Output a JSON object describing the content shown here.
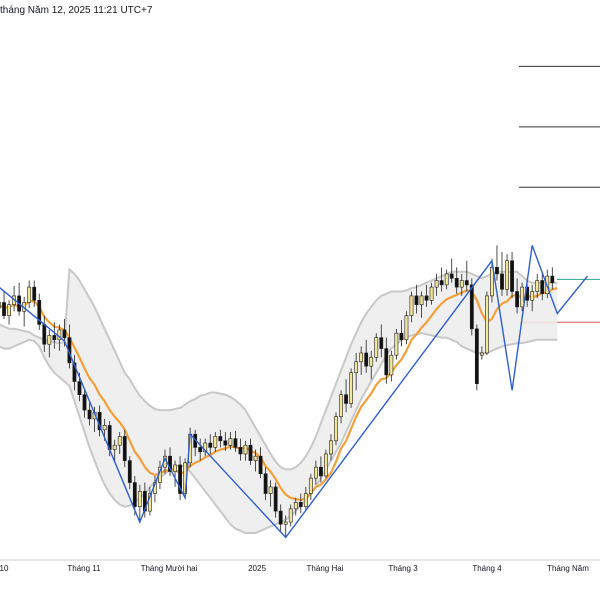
{
  "header": {
    "datetime_text": "tháng Năm 12, 2025 11:21 UTC+7"
  },
  "colors": {
    "candle_up": "#f3e69a",
    "candle_down": "#111111",
    "candle_outline": "#222222",
    "ema": "#f2a03a",
    "zigzag": "#2f5fd1",
    "band_fill": "#ececec",
    "band_edge": "#c8c8c8",
    "resistance_line": "#2aa889",
    "support_line": "#e05a5a",
    "target_lines": "#333333"
  },
  "chart_data": {
    "type": "candlestick",
    "title": "",
    "x_tick_labels": [
      "10",
      "Tháng 11",
      "Tháng Mười hai",
      "2025",
      "Tháng Hai",
      "Tháng 3",
      "Tháng 4",
      "Tháng Năm"
    ],
    "candles": [
      {
        "o": 1225,
        "h": 1241,
        "l": 1205,
        "c": 1230
      },
      {
        "o": 1230,
        "h": 1240,
        "l": 1215,
        "c": 1218
      },
      {
        "o": 1218,
        "h": 1232,
        "l": 1210,
        "c": 1228
      },
      {
        "o": 1228,
        "h": 1245,
        "l": 1222,
        "c": 1236
      },
      {
        "o": 1236,
        "h": 1248,
        "l": 1218,
        "c": 1222
      },
      {
        "o": 1222,
        "h": 1235,
        "l": 1208,
        "c": 1230
      },
      {
        "o": 1230,
        "h": 1250,
        "l": 1225,
        "c": 1244
      },
      {
        "o": 1244,
        "h": 1250,
        "l": 1226,
        "c": 1232
      },
      {
        "o": 1232,
        "h": 1238,
        "l": 1205,
        "c": 1210
      },
      {
        "o": 1210,
        "h": 1218,
        "l": 1185,
        "c": 1192
      },
      {
        "o": 1192,
        "h": 1205,
        "l": 1180,
        "c": 1200
      },
      {
        "o": 1200,
        "h": 1212,
        "l": 1188,
        "c": 1196
      },
      {
        "o": 1196,
        "h": 1210,
        "l": 1186,
        "c": 1205
      },
      {
        "o": 1205,
        "h": 1215,
        "l": 1190,
        "c": 1198
      },
      {
        "o": 1198,
        "h": 1210,
        "l": 1170,
        "c": 1175
      },
      {
        "o": 1175,
        "h": 1182,
        "l": 1150,
        "c": 1158
      },
      {
        "o": 1158,
        "h": 1166,
        "l": 1140,
        "c": 1146
      },
      {
        "o": 1146,
        "h": 1150,
        "l": 1125,
        "c": 1132
      },
      {
        "o": 1132,
        "h": 1140,
        "l": 1118,
        "c": 1124
      },
      {
        "o": 1124,
        "h": 1135,
        "l": 1112,
        "c": 1130
      },
      {
        "o": 1130,
        "h": 1136,
        "l": 1108,
        "c": 1114
      },
      {
        "o": 1114,
        "h": 1124,
        "l": 1104,
        "c": 1118
      },
      {
        "o": 1118,
        "h": 1122,
        "l": 1090,
        "c": 1096
      },
      {
        "o": 1096,
        "h": 1105,
        "l": 1085,
        "c": 1100
      },
      {
        "o": 1100,
        "h": 1112,
        "l": 1092,
        "c": 1108
      },
      {
        "o": 1108,
        "h": 1114,
        "l": 1080,
        "c": 1086
      },
      {
        "o": 1086,
        "h": 1090,
        "l": 1060,
        "c": 1066
      },
      {
        "o": 1066,
        "h": 1072,
        "l": 1036,
        "c": 1044
      },
      {
        "o": 1044,
        "h": 1064,
        "l": 1030,
        "c": 1058
      },
      {
        "o": 1058,
        "h": 1066,
        "l": 1034,
        "c": 1040
      },
      {
        "o": 1040,
        "h": 1062,
        "l": 1036,
        "c": 1056
      },
      {
        "o": 1056,
        "h": 1072,
        "l": 1048,
        "c": 1066
      },
      {
        "o": 1066,
        "h": 1086,
        "l": 1060,
        "c": 1080
      },
      {
        "o": 1080,
        "h": 1096,
        "l": 1074,
        "c": 1090
      },
      {
        "o": 1090,
        "h": 1098,
        "l": 1072,
        "c": 1076
      },
      {
        "o": 1076,
        "h": 1086,
        "l": 1062,
        "c": 1082
      },
      {
        "o": 1082,
        "h": 1090,
        "l": 1050,
        "c": 1056
      },
      {
        "o": 1056,
        "h": 1088,
        "l": 1052,
        "c": 1084
      },
      {
        "o": 1084,
        "h": 1116,
        "l": 1080,
        "c": 1110
      },
      {
        "o": 1110,
        "h": 1114,
        "l": 1090,
        "c": 1098
      },
      {
        "o": 1098,
        "h": 1106,
        "l": 1086,
        "c": 1094
      },
      {
        "o": 1094,
        "h": 1106,
        "l": 1090,
        "c": 1102
      },
      {
        "o": 1102,
        "h": 1110,
        "l": 1092,
        "c": 1098
      },
      {
        "o": 1098,
        "h": 1112,
        "l": 1094,
        "c": 1108
      },
      {
        "o": 1108,
        "h": 1114,
        "l": 1098,
        "c": 1104
      },
      {
        "o": 1104,
        "h": 1112,
        "l": 1095,
        "c": 1100
      },
      {
        "o": 1100,
        "h": 1112,
        "l": 1096,
        "c": 1106
      },
      {
        "o": 1106,
        "h": 1113,
        "l": 1094,
        "c": 1098
      },
      {
        "o": 1098,
        "h": 1106,
        "l": 1086,
        "c": 1092
      },
      {
        "o": 1092,
        "h": 1104,
        "l": 1086,
        "c": 1100
      },
      {
        "o": 1100,
        "h": 1106,
        "l": 1082,
        "c": 1086
      },
      {
        "o": 1086,
        "h": 1096,
        "l": 1076,
        "c": 1090
      },
      {
        "o": 1090,
        "h": 1098,
        "l": 1070,
        "c": 1074
      },
      {
        "o": 1074,
        "h": 1080,
        "l": 1050,
        "c": 1056
      },
      {
        "o": 1056,
        "h": 1068,
        "l": 1044,
        "c": 1062
      },
      {
        "o": 1062,
        "h": 1066,
        "l": 1034,
        "c": 1040
      },
      {
        "o": 1040,
        "h": 1046,
        "l": 1022,
        "c": 1028
      },
      {
        "o": 1028,
        "h": 1036,
        "l": 1016,
        "c": 1030
      },
      {
        "o": 1030,
        "h": 1046,
        "l": 1026,
        "c": 1042
      },
      {
        "o": 1042,
        "h": 1052,
        "l": 1036,
        "c": 1048
      },
      {
        "o": 1048,
        "h": 1056,
        "l": 1038,
        "c": 1044
      },
      {
        "o": 1044,
        "h": 1062,
        "l": 1040,
        "c": 1056
      },
      {
        "o": 1056,
        "h": 1074,
        "l": 1050,
        "c": 1070
      },
      {
        "o": 1070,
        "h": 1086,
        "l": 1064,
        "c": 1080
      },
      {
        "o": 1080,
        "h": 1090,
        "l": 1066,
        "c": 1072
      },
      {
        "o": 1072,
        "h": 1096,
        "l": 1070,
        "c": 1092
      },
      {
        "o": 1092,
        "h": 1110,
        "l": 1086,
        "c": 1104
      },
      {
        "o": 1104,
        "h": 1130,
        "l": 1100,
        "c": 1126
      },
      {
        "o": 1126,
        "h": 1150,
        "l": 1120,
        "c": 1146
      },
      {
        "o": 1146,
        "h": 1160,
        "l": 1130,
        "c": 1138
      },
      {
        "o": 1138,
        "h": 1170,
        "l": 1134,
        "c": 1166
      },
      {
        "o": 1166,
        "h": 1184,
        "l": 1150,
        "c": 1176
      },
      {
        "o": 1176,
        "h": 1190,
        "l": 1164,
        "c": 1184
      },
      {
        "o": 1184,
        "h": 1196,
        "l": 1166,
        "c": 1172
      },
      {
        "o": 1172,
        "h": 1186,
        "l": 1160,
        "c": 1180
      },
      {
        "o": 1180,
        "h": 1202,
        "l": 1176,
        "c": 1198
      },
      {
        "o": 1198,
        "h": 1210,
        "l": 1180,
        "c": 1188
      },
      {
        "o": 1188,
        "h": 1198,
        "l": 1156,
        "c": 1164
      },
      {
        "o": 1164,
        "h": 1186,
        "l": 1158,
        "c": 1182
      },
      {
        "o": 1182,
        "h": 1206,
        "l": 1178,
        "c": 1202
      },
      {
        "o": 1202,
        "h": 1214,
        "l": 1190,
        "c": 1196
      },
      {
        "o": 1196,
        "h": 1222,
        "l": 1192,
        "c": 1218
      },
      {
        "o": 1218,
        "h": 1240,
        "l": 1212,
        "c": 1236
      },
      {
        "o": 1236,
        "h": 1246,
        "l": 1220,
        "c": 1228
      },
      {
        "o": 1228,
        "h": 1240,
        "l": 1216,
        "c": 1236
      },
      {
        "o": 1236,
        "h": 1246,
        "l": 1226,
        "c": 1232
      },
      {
        "o": 1232,
        "h": 1248,
        "l": 1228,
        "c": 1244
      },
      {
        "o": 1244,
        "h": 1256,
        "l": 1236,
        "c": 1250
      },
      {
        "o": 1250,
        "h": 1262,
        "l": 1240,
        "c": 1246
      },
      {
        "o": 1246,
        "h": 1260,
        "l": 1242,
        "c": 1256
      },
      {
        "o": 1256,
        "h": 1270,
        "l": 1248,
        "c": 1252
      },
      {
        "o": 1252,
        "h": 1262,
        "l": 1238,
        "c": 1244
      },
      {
        "o": 1244,
        "h": 1256,
        "l": 1236,
        "c": 1250
      },
      {
        "o": 1250,
        "h": 1268,
        "l": 1240,
        "c": 1246
      },
      {
        "o": 1246,
        "h": 1252,
        "l": 1200,
        "c": 1206
      },
      {
        "o": 1206,
        "h": 1210,
        "l": 1150,
        "c": 1156
      },
      {
        "o": 1182,
        "h": 1190,
        "l": 1178,
        "c": 1184
      },
      {
        "o": 1184,
        "h": 1240,
        "l": 1182,
        "c": 1236
      },
      {
        "o": 1236,
        "h": 1270,
        "l": 1230,
        "c": 1262
      },
      {
        "o": 1262,
        "h": 1282,
        "l": 1250,
        "c": 1256
      },
      {
        "o": 1256,
        "h": 1276,
        "l": 1236,
        "c": 1242
      },
      {
        "o": 1242,
        "h": 1274,
        "l": 1236,
        "c": 1268
      },
      {
        "o": 1268,
        "h": 1276,
        "l": 1234,
        "c": 1240
      },
      {
        "o": 1240,
        "h": 1252,
        "l": 1220,
        "c": 1226
      },
      {
        "o": 1226,
        "h": 1248,
        "l": 1222,
        "c": 1244
      },
      {
        "o": 1244,
        "h": 1252,
        "l": 1226,
        "c": 1232
      },
      {
        "o": 1232,
        "h": 1246,
        "l": 1222,
        "c": 1240
      },
      {
        "o": 1240,
        "h": 1256,
        "l": 1234,
        "c": 1250
      },
      {
        "o": 1250,
        "h": 1258,
        "l": 1232,
        "c": 1238
      },
      {
        "o": 1238,
        "h": 1260,
        "l": 1234,
        "c": 1254
      },
      {
        "o": 1254,
        "h": 1262,
        "l": 1242,
        "c": 1248
      }
    ],
    "ema": [
      1228,
      1225,
      1226,
      1228,
      1226,
      1227,
      1231,
      1231,
      1226,
      1217,
      1212,
      1208,
      1207,
      1205,
      1198,
      1189,
      1180,
      1170,
      1161,
      1155,
      1146,
      1140,
      1132,
      1126,
      1121,
      1114,
      1104,
      1094,
      1088,
      1080,
      1075,
      1073,
      1074,
      1077,
      1077,
      1078,
      1074,
      1076,
      1081,
      1084,
      1086,
      1089,
      1091,
      1094,
      1096,
      1097,
      1099,
      1098,
      1097,
      1098,
      1095,
      1093,
      1089,
      1081,
      1076,
      1069,
      1061,
      1055,
      1052,
      1051,
      1050,
      1052,
      1056,
      1062,
      1064,
      1069,
      1075,
      1085,
      1097,
      1104,
      1115,
      1126,
      1135,
      1141,
      1147,
      1155,
      1160,
      1161,
      1166,
      1173,
      1178,
      1186,
      1196,
      1201,
      1207,
      1212,
      1218,
      1224,
      1229,
      1233,
      1235,
      1237,
      1239,
      1241,
      1240,
      1232,
      1220,
      1212,
      1215,
      1224,
      1229,
      1231,
      1236,
      1237,
      1234,
      1236,
      1235,
      1236,
      1239,
      1239,
      1242,
      1243
    ],
    "band_upper": [
      1210,
      1208,
      1206,
      1206,
      1205,
      1204,
      1203,
      1200,
      1198,
      1196,
      1195,
      1194,
      1193,
      1194,
      1260,
      1256,
      1250,
      1242,
      1234,
      1226,
      1216,
      1206,
      1196,
      1186,
      1176,
      1166,
      1160,
      1152,
      1145,
      1140,
      1136,
      1133,
      1132,
      1132,
      1132,
      1133,
      1134,
      1137,
      1140,
      1142,
      1145,
      1146,
      1148,
      1148,
      1147,
      1146,
      1144,
      1141,
      1137,
      1132,
      1124,
      1116,
      1108,
      1100,
      1092,
      1085,
      1080,
      1078,
      1078,
      1080,
      1084,
      1090,
      1098,
      1108,
      1120,
      1132,
      1144,
      1156,
      1168,
      1180,
      1192,
      1202,
      1212,
      1220,
      1226,
      1232,
      1236,
      1238,
      1240,
      1240,
      1240,
      1241,
      1243,
      1244,
      1246,
      1248,
      1250,
      1252,
      1254,
      1256,
      1258,
      1258,
      1258,
      1258,
      1256,
      1254,
      1252,
      1254,
      1256,
      1258,
      1258,
      1258,
      1258,
      1258,
      1254,
      1250,
      1248,
      1248,
      1248,
      1248,
      1248,
      1248
    ],
    "band_lower": [
      1190,
      1188,
      1188,
      1190,
      1192,
      1194,
      1196,
      1195,
      1190,
      1180,
      1172,
      1166,
      1162,
      1158,
      1154,
      1140,
      1126,
      1112,
      1098,
      1086,
      1074,
      1064,
      1056,
      1050,
      1046,
      1044,
      1045,
      1048,
      1052,
      1056,
      1062,
      1066,
      1070,
      1074,
      1078,
      1080,
      1082,
      1080,
      1076,
      1070,
      1064,
      1058,
      1052,
      1046,
      1040,
      1034,
      1028,
      1024,
      1022,
      1020,
      1020,
      1020,
      1022,
      1024,
      1026,
      1028,
      1030,
      1032,
      1036,
      1040,
      1045,
      1050,
      1056,
      1062,
      1070,
      1078,
      1086,
      1094,
      1102,
      1112,
      1122,
      1132,
      1142,
      1150,
      1158,
      1166,
      1174,
      1182,
      1188,
      1192,
      1196,
      1198,
      1200,
      1201,
      1202,
      1201,
      1200,
      1199,
      1198,
      1198,
      1196,
      1194,
      1190,
      1188,
      1186,
      1184,
      1184,
      1184,
      1186,
      1188,
      1190,
      1191,
      1192,
      1193,
      1193,
      1194,
      1195,
      1196,
      1196,
      1196,
      1196,
      1196
    ],
    "zigzag": [
      [
        0,
        1244
      ],
      [
        13,
        1195
      ],
      [
        28,
        1030
      ],
      [
        33,
        1088
      ],
      [
        37,
        1052
      ],
      [
        38,
        1110
      ],
      [
        57,
        1016
      ],
      [
        98,
        1268
      ],
      [
        102,
        1150
      ],
      [
        106,
        1282
      ],
      [
        111,
        1220
      ],
      [
        117,
        1254
      ]
    ],
    "horizontal_levels": [
      {
        "kind": "target",
        "value": 1445
      },
      {
        "kind": "target",
        "value": 1390
      },
      {
        "kind": "target",
        "value": 1335
      },
      {
        "kind": "resistance",
        "value": 1251
      },
      {
        "kind": "support",
        "value": 1212
      }
    ],
    "y_range": [
      1000,
      1480
    ],
    "grid": false,
    "legend": "none"
  }
}
